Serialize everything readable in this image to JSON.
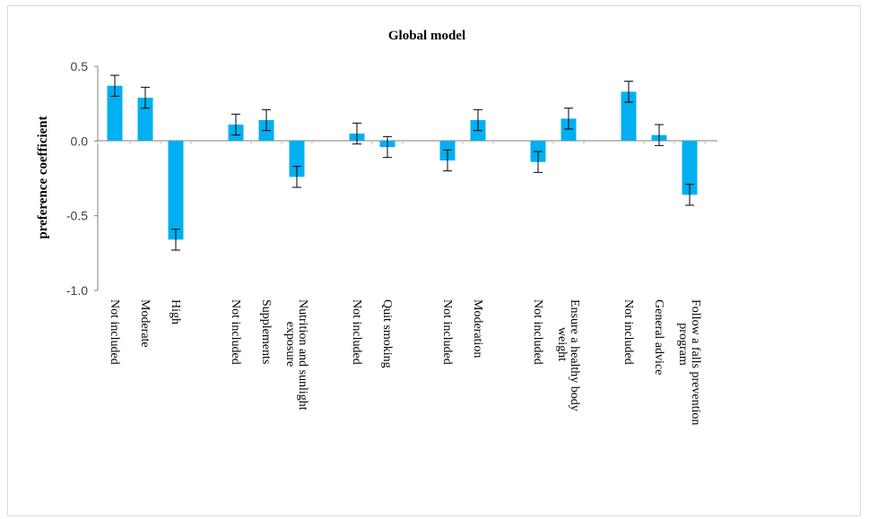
{
  "chart_data": {
    "type": "bar",
    "title": "Global model",
    "xlabel": "",
    "ylabel": "preference  coefficient",
    "ylim": [
      -1.0,
      0.5
    ],
    "yticks": [
      "0.5",
      "0.0",
      "-0.5",
      "-1.0"
    ],
    "ytick_values": [
      0.5,
      0.0,
      -0.5,
      -1.0
    ],
    "bar_color": "#00b0f0",
    "groups": [
      {
        "categories": [
          "Not included",
          "Moderate",
          "High"
        ],
        "values": [
          0.37,
          0.29,
          -0.66
        ],
        "errors": [
          0.07,
          0.07,
          0.07
        ]
      },
      {
        "categories": [
          "Not included",
          "Supplements",
          "Nutrition and sunlight exposure"
        ],
        "values": [
          0.11,
          0.14,
          -0.24
        ],
        "errors": [
          0.07,
          0.07,
          0.07
        ]
      },
      {
        "categories": [
          "Not included",
          "Quit smoking"
        ],
        "values": [
          0.05,
          -0.04
        ],
        "errors": [
          0.07,
          0.07
        ]
      },
      {
        "categories": [
          "Not included",
          "Moderation"
        ],
        "values": [
          -0.13,
          0.14
        ],
        "errors": [
          0.07,
          0.07
        ]
      },
      {
        "categories": [
          "Not included",
          "Ensure a healthy body weight"
        ],
        "values": [
          -0.14,
          0.15
        ],
        "errors": [
          0.07,
          0.07
        ]
      },
      {
        "categories": [
          "Not included",
          "General advice",
          "Follow a falls prevention program"
        ],
        "values": [
          0.33,
          0.04,
          -0.36
        ],
        "errors": [
          0.07,
          0.07,
          0.07
        ]
      }
    ]
  }
}
